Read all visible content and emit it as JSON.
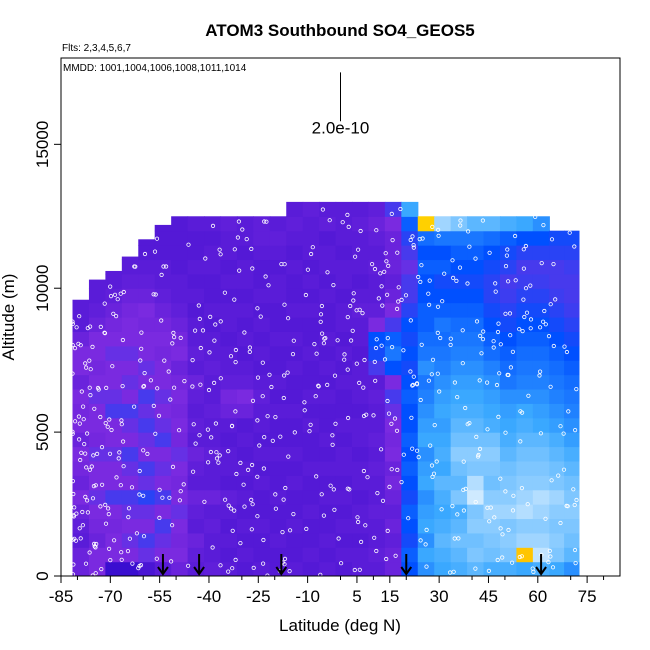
{
  "chart_data": {
    "type": "heatmap",
    "title": "ATOM3 Southbound SO4_GEOS5",
    "flights_note": "Flts: 2,3,4,5,6,7",
    "dates_note": "MMDD: 1001,1004,1006,1008,1011,1014",
    "xlabel": "Latitude (deg N)",
    "ylabel": "Altitude (m)",
    "xlim": [
      -85,
      85
    ],
    "ylim": [
      0,
      18000
    ],
    "x_ticks": [
      -85,
      -70,
      -55,
      -40,
      -25,
      -10,
      5,
      15,
      30,
      45,
      60,
      75
    ],
    "y_ticks": [
      0,
      5000,
      10000,
      15000
    ],
    "scale_label": "2.0e-10",
    "scale_bar": {
      "x": 0,
      "y_from": 15800,
      "y_to": 17500
    },
    "arrow_latitudes": [
      -54,
      -43,
      -18,
      20,
      61
    ],
    "colors": {
      "low": "#1a00c8",
      "purple": "#7a2ae0",
      "mid": "#0050ff",
      "light": "#3aa8ff",
      "pale": "#cfeaff",
      "high": "#ffd000",
      "peak": "#ff9a00",
      "points": "#ffffff"
    },
    "columns": [
      {
        "lat": -79,
        "top": 9600,
        "vals": [
          0.25,
          0.25,
          0.2,
          0.22,
          0.25,
          0.3,
          0.25,
          0.28,
          0.3,
          0.25,
          0.3,
          0.28,
          0.3,
          0.25,
          0.3,
          0.3,
          0.25,
          0.2,
          0.2,
          0.2
        ]
      },
      {
        "lat": -74,
        "top": 10300,
        "vals": [
          0.3,
          0.3,
          0.25,
          0.28,
          0.3,
          0.32,
          0.3,
          0.3,
          0.32,
          0.28,
          0.3,
          0.3,
          0.32,
          0.3,
          0.28,
          0.3,
          0.3,
          0.25,
          0.22,
          0.2,
          0.2
        ]
      },
      {
        "lat": -69,
        "top": 10600,
        "vals": [
          0.1,
          0.3,
          0.3,
          0.28,
          0.3,
          0.35,
          0.3,
          0.3,
          0.32,
          0.3,
          0.3,
          0.35,
          0.32,
          0.3,
          0.3,
          0.32,
          0.3,
          0.28,
          0.25,
          0.22,
          0.2,
          0.2
        ]
      },
      {
        "lat": -64,
        "top": 11100,
        "vals": [
          0.1,
          0.3,
          0.32,
          0.3,
          0.32,
          0.35,
          0.3,
          0.32,
          0.35,
          0.3,
          0.32,
          0.35,
          0.3,
          0.32,
          0.3,
          0.32,
          0.3,
          0.3,
          0.28,
          0.25,
          0.22,
          0.2,
          0.2
        ]
      },
      {
        "lat": -59,
        "top": 11700,
        "vals": [
          0.15,
          0.32,
          0.35,
          0.3,
          0.32,
          0.38,
          0.32,
          0.35,
          0.3,
          0.32,
          0.35,
          0.32,
          0.35,
          0.3,
          0.32,
          0.3,
          0.3,
          0.28,
          0.3,
          0.25,
          0.22,
          0.2,
          0.18,
          0.18
        ]
      },
      {
        "lat": -54,
        "top": 12200,
        "vals": [
          0.2,
          0.3,
          0.32,
          0.35,
          0.3,
          0.35,
          0.3,
          0.32,
          0.3,
          0.35,
          0.32,
          0.3,
          0.32,
          0.3,
          0.3,
          0.28,
          0.3,
          0.28,
          0.25,
          0.22,
          0.2,
          0.2,
          0.18,
          0.18,
          0.18
        ]
      },
      {
        "lat": -49,
        "top": 12500,
        "vals": [
          0.25,
          0.3,
          0.28,
          0.3,
          0.32,
          0.3,
          0.28,
          0.3,
          0.32,
          0.28,
          0.3,
          0.28,
          0.3,
          0.28,
          0.25,
          0.3,
          0.28,
          0.25,
          0.22,
          0.2,
          0.2,
          0.18,
          0.18,
          0.18,
          0.18
        ]
      },
      {
        "lat": -44,
        "top": 12500,
        "vals": [
          0.2,
          0.22,
          0.25,
          0.2,
          0.22,
          0.25,
          0.2,
          0.22,
          0.25,
          0.2,
          0.22,
          0.2,
          0.22,
          0.25,
          0.2,
          0.22,
          0.2,
          0.2,
          0.18,
          0.2,
          0.18,
          0.2,
          0.18,
          0.18,
          0.2
        ]
      },
      {
        "lat": -39,
        "top": 12500,
        "vals": [
          0.22,
          0.2,
          0.2,
          0.22,
          0.2,
          0.25,
          0.2,
          0.2,
          0.22,
          0.2,
          0.2,
          0.22,
          0.2,
          0.2,
          0.22,
          0.2,
          0.2,
          0.18,
          0.2,
          0.18,
          0.18,
          0.2,
          0.2,
          0.18,
          0.2
        ]
      },
      {
        "lat": -34,
        "top": 12500,
        "vals": [
          0.2,
          0.18,
          0.2,
          0.18,
          0.2,
          0.22,
          0.18,
          0.2,
          0.2,
          0.18,
          0.2,
          0.25,
          0.28,
          0.22,
          0.2,
          0.2,
          0.18,
          0.2,
          0.2,
          0.18,
          0.2,
          0.18,
          0.2,
          0.2,
          0.22
        ]
      },
      {
        "lat": -29,
        "top": 12500,
        "vals": [
          0.18,
          0.2,
          0.18,
          0.2,
          0.18,
          0.2,
          0.18,
          0.2,
          0.18,
          0.2,
          0.18,
          0.25,
          0.3,
          0.22,
          0.2,
          0.18,
          0.2,
          0.18,
          0.2,
          0.18,
          0.2,
          0.2,
          0.18,
          0.2,
          0.2
        ]
      },
      {
        "lat": -24,
        "top": 12500,
        "vals": [
          0.2,
          0.18,
          0.18,
          0.2,
          0.18,
          0.18,
          0.2,
          0.18,
          0.2,
          0.18,
          0.2,
          0.2,
          0.22,
          0.2,
          0.18,
          0.2,
          0.18,
          0.2,
          0.18,
          0.2,
          0.18,
          0.18,
          0.2,
          0.22,
          0.22
        ]
      },
      {
        "lat": -19,
        "top": 12500,
        "vals": [
          0.18,
          0.18,
          0.2,
          0.18,
          0.18,
          0.2,
          0.18,
          0.18,
          0.2,
          0.18,
          0.18,
          0.2,
          0.18,
          0.2,
          0.18,
          0.18,
          0.2,
          0.18,
          0.18,
          0.2,
          0.2,
          0.18,
          0.2,
          0.22,
          0.2
        ]
      },
      {
        "lat": -14,
        "top": 13000,
        "vals": [
          0.2,
          0.18,
          0.18,
          0.2,
          0.18,
          0.18,
          0.2,
          0.18,
          0.2,
          0.18,
          0.18,
          0.2,
          0.18,
          0.18,
          0.2,
          0.18,
          0.2,
          0.18,
          0.2,
          0.18,
          0.18,
          0.2,
          0.18,
          0.2,
          0.22,
          0.2
        ]
      },
      {
        "lat": -9,
        "top": 13000,
        "vals": [
          0.18,
          0.2,
          0.18,
          0.18,
          0.2,
          0.18,
          0.18,
          0.2,
          0.18,
          0.18,
          0.2,
          0.18,
          0.2,
          0.18,
          0.18,
          0.2,
          0.18,
          0.18,
          0.2,
          0.18,
          0.2,
          0.18,
          0.2,
          0.2,
          0.2,
          0.22
        ]
      },
      {
        "lat": -4,
        "top": 13000,
        "vals": [
          0.2,
          0.18,
          0.2,
          0.18,
          0.18,
          0.2,
          0.18,
          0.2,
          0.18,
          0.2,
          0.18,
          0.18,
          0.2,
          0.18,
          0.2,
          0.18,
          0.2,
          0.18,
          0.18,
          0.2,
          0.18,
          0.2,
          0.2,
          0.18,
          0.22,
          0.2
        ]
      },
      {
        "lat": 1,
        "top": 13000,
        "vals": [
          0.18,
          0.2,
          0.18,
          0.2,
          0.18,
          0.2,
          0.18,
          0.2,
          0.2,
          0.18,
          0.2,
          0.18,
          0.18,
          0.2,
          0.18,
          0.2,
          0.18,
          0.2,
          0.2,
          0.18,
          0.2,
          0.2,
          0.18,
          0.2,
          0.2,
          0.2
        ]
      },
      {
        "lat": 6,
        "top": 13000,
        "vals": [
          0.2,
          0.2,
          0.18,
          0.2,
          0.2,
          0.18,
          0.2,
          0.2,
          0.18,
          0.2,
          0.2,
          0.18,
          0.2,
          0.2,
          0.2,
          0.18,
          0.2,
          0.2,
          0.22,
          0.2,
          0.18,
          0.2,
          0.2,
          0.2,
          0.22,
          0.2
        ]
      },
      {
        "lat": 11,
        "top": 13000,
        "vals": [
          0.2,
          0.22,
          0.2,
          0.2,
          0.22,
          0.2,
          0.2,
          0.22,
          0.2,
          0.22,
          0.2,
          0.2,
          0.22,
          0.2,
          0.35,
          0.4,
          0.42,
          0.3,
          0.22,
          0.2,
          0.2,
          0.22,
          0.2,
          0.22,
          0.25,
          0.22
        ]
      },
      {
        "lat": 16,
        "top": 13000,
        "vals": [
          0.25,
          0.25,
          0.22,
          0.25,
          0.22,
          0.25,
          0.28,
          0.25,
          0.3,
          0.28,
          0.3,
          0.32,
          0.35,
          0.3,
          0.42,
          0.5,
          0.45,
          0.35,
          0.3,
          0.25,
          0.22,
          0.25,
          0.25,
          0.25,
          0.3,
          0.35
        ]
      },
      {
        "lat": 21,
        "top": 13000,
        "vals": [
          0.42,
          0.45,
          0.4,
          0.42,
          0.45,
          0.4,
          0.42,
          0.45,
          0.42,
          0.45,
          0.42,
          0.42,
          0.45,
          0.42,
          0.4,
          0.42,
          0.4,
          0.42,
          0.38,
          0.35,
          0.35,
          0.32,
          0.35,
          0.38,
          0.45,
          0.6
        ]
      },
      {
        "lat": 26,
        "top": 12500,
        "vals": [
          0.55,
          0.6,
          0.55,
          0.6,
          0.58,
          0.55,
          0.6,
          0.58,
          0.55,
          0.6,
          0.58,
          0.55,
          0.52,
          0.5,
          0.55,
          0.5,
          0.48,
          0.45,
          0.45,
          0.42,
          0.42,
          0.45,
          0.42,
          0.48,
          0.9
        ]
      },
      {
        "lat": 31,
        "top": 12500,
        "vals": [
          0.6,
          0.62,
          0.65,
          0.62,
          0.6,
          0.62,
          0.65,
          0.6,
          0.62,
          0.6,
          0.58,
          0.6,
          0.58,
          0.55,
          0.52,
          0.5,
          0.48,
          0.5,
          0.45,
          0.42,
          0.4,
          0.45,
          0.42,
          0.5,
          0.75
        ]
      },
      {
        "lat": 36,
        "top": 12500,
        "vals": [
          0.62,
          0.65,
          0.68,
          0.65,
          0.62,
          0.7,
          0.65,
          0.68,
          0.72,
          0.68,
          0.65,
          0.62,
          0.6,
          0.58,
          0.55,
          0.52,
          0.5,
          0.48,
          0.45,
          0.42,
          0.4,
          0.42,
          0.45,
          0.5,
          0.7
        ]
      },
      {
        "lat": 41,
        "top": 12500,
        "vals": [
          0.65,
          0.7,
          0.68,
          0.72,
          0.7,
          0.82,
          0.78,
          0.7,
          0.72,
          0.68,
          0.65,
          0.62,
          0.6,
          0.58,
          0.55,
          0.52,
          0.5,
          0.48,
          0.45,
          0.42,
          0.4,
          0.42,
          0.45,
          0.5,
          0.65
        ]
      },
      {
        "lat": 46,
        "top": 12500,
        "vals": [
          0.62,
          0.68,
          0.7,
          0.72,
          0.75,
          0.72,
          0.68,
          0.7,
          0.72,
          0.68,
          0.62,
          0.6,
          0.58,
          0.55,
          0.52,
          0.48,
          0.45,
          0.42,
          0.4,
          0.38,
          0.38,
          0.4,
          0.42,
          0.48,
          0.65
        ]
      },
      {
        "lat": 51,
        "top": 12500,
        "vals": [
          0.62,
          0.7,
          0.72,
          0.7,
          0.75,
          0.72,
          0.7,
          0.68,
          0.65,
          0.62,
          0.6,
          0.58,
          0.55,
          0.5,
          0.48,
          0.45,
          0.42,
          0.4,
          0.38,
          0.36,
          0.35,
          0.38,
          0.4,
          0.45,
          0.62
        ]
      },
      {
        "lat": 56,
        "top": 12500,
        "vals": [
          0.6,
          0.92,
          0.75,
          0.72,
          0.78,
          0.75,
          0.72,
          0.7,
          0.68,
          0.65,
          0.62,
          0.6,
          0.55,
          0.52,
          0.5,
          0.48,
          0.45,
          0.42,
          0.4,
          0.38,
          0.36,
          0.35,
          0.38,
          0.42,
          0.6
        ]
      },
      {
        "lat": 61,
        "top": 12500,
        "vals": [
          0.62,
          0.8,
          0.75,
          0.72,
          0.75,
          0.78,
          0.72,
          0.7,
          0.68,
          0.65,
          0.6,
          0.58,
          0.55,
          0.52,
          0.5,
          0.48,
          0.45,
          0.42,
          0.4,
          0.38,
          0.36,
          0.35,
          0.38,
          0.42,
          0.55
        ]
      },
      {
        "lat": 66,
        "top": 12000,
        "vals": [
          0.6,
          0.7,
          0.72,
          0.7,
          0.72,
          0.75,
          0.7,
          0.68,
          0.65,
          0.62,
          0.58,
          0.55,
          0.52,
          0.5,
          0.48,
          0.45,
          0.42,
          0.4,
          0.38,
          0.36,
          0.35,
          0.35,
          0.38,
          0.4
        ]
      },
      {
        "lat": 70,
        "top": 12000,
        "vals": [
          0.55,
          0.65,
          0.68,
          0.7,
          0.72,
          0.7,
          0.68,
          0.65,
          0.62,
          0.58,
          0.55,
          0.52,
          0.5,
          0.48,
          0.45,
          0.42,
          0.4,
          0.38,
          0.36,
          0.35,
          0.35,
          0.36,
          0.38,
          0.4
        ]
      }
    ]
  }
}
